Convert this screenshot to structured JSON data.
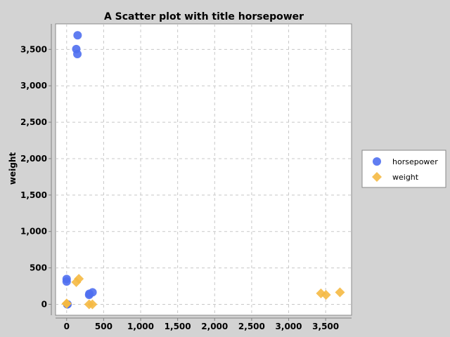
{
  "chart_data": {
    "type": "scatter",
    "title": "A Scatter plot with title horsepower",
    "xlabel": "",
    "ylabel": "weight",
    "xlim": [
      -150,
      3850
    ],
    "ylim": [
      -150,
      3850
    ],
    "xticks": [
      0,
      500,
      1000,
      1500,
      2000,
      2500,
      3000,
      3500
    ],
    "xtick_labels": [
      "0",
      "500",
      "1,000",
      "1,500",
      "2,000",
      "2,500",
      "3,000",
      "3,500"
    ],
    "yticks": [
      0,
      500,
      1000,
      1500,
      2000,
      2500,
      3000,
      3500
    ],
    "ytick_labels": [
      "0",
      "500",
      "1,000",
      "1,500",
      "2,000",
      "2,500",
      "3,000",
      "3,500"
    ],
    "grid": true,
    "legend_position": "right",
    "series": [
      {
        "name": "horsepower",
        "marker": "circle",
        "color": "#4f6ff0",
        "points": [
          [
            148,
            3693
          ],
          [
            130,
            3504
          ],
          [
            145,
            3436
          ],
          [
            0,
            348
          ],
          [
            0,
            313
          ],
          [
            8,
            0
          ],
          [
            12,
            0
          ],
          [
            304,
            130
          ],
          [
            307,
            145
          ],
          [
            350,
            165
          ]
        ]
      },
      {
        "name": "weight",
        "marker": "diamond",
        "color": "#f5b942",
        "points": [
          [
            3436,
            150
          ],
          [
            3504,
            130
          ],
          [
            3693,
            165
          ],
          [
            130,
            304
          ],
          [
            165,
            350
          ],
          [
            0,
            12
          ],
          [
            0,
            8
          ],
          [
            304,
            0
          ],
          [
            348,
            0
          ]
        ]
      }
    ]
  }
}
